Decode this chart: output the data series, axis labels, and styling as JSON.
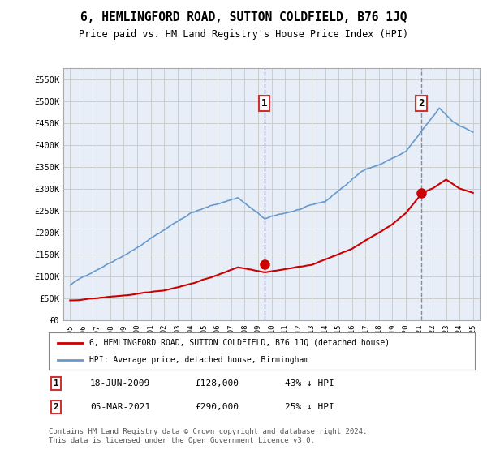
{
  "title": "6, HEMLINGFORD ROAD, SUTTON COLDFIELD, B76 1JQ",
  "subtitle": "Price paid vs. HM Land Registry's House Price Index (HPI)",
  "legend_line1": "6, HEMLINGFORD ROAD, SUTTON COLDFIELD, B76 1JQ (detached house)",
  "legend_line2": "HPI: Average price, detached house, Birmingham",
  "footnote": "Contains HM Land Registry data © Crown copyright and database right 2024.\nThis data is licensed under the Open Government Licence v3.0.",
  "marker1_label": "1",
  "marker1_date": "18-JUN-2009",
  "marker1_price": "£128,000",
  "marker1_hpi": "43% ↓ HPI",
  "marker1_x": 2009.46,
  "marker1_y": 128000,
  "marker2_label": "2",
  "marker2_date": "05-MAR-2021",
  "marker2_price": "£290,000",
  "marker2_hpi": "25% ↓ HPI",
  "marker2_x": 2021.17,
  "marker2_y": 290000,
  "ylim": [
    0,
    575000
  ],
  "xlim": [
    1994.5,
    2025.5
  ],
  "red_line_color": "#cc0000",
  "blue_line_color": "#6699cc",
  "background_color": "#e8eef8",
  "grid_color": "#cccccc",
  "dashed_line_color": "#8888aa"
}
